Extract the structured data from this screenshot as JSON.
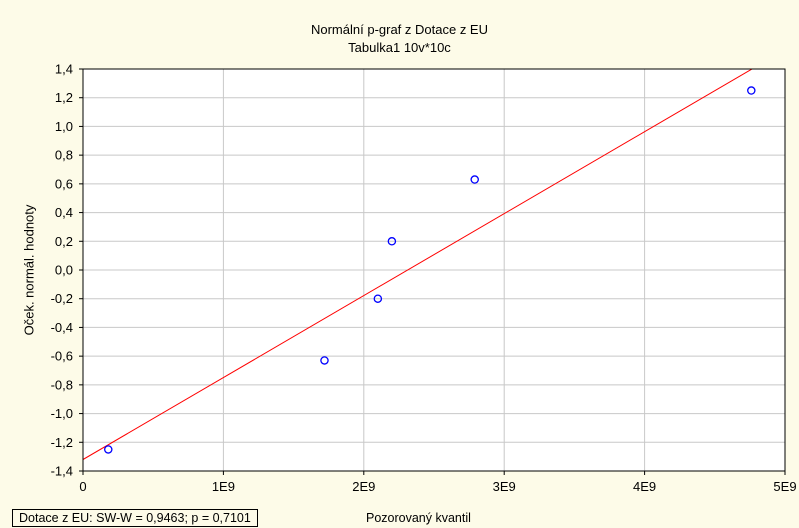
{
  "chart_data": {
    "type": "scatter",
    "title": "Normální p-graf z Dotace z EU",
    "subtitle": "Tabulka1 10v*10c",
    "xlabel": "Pozorovaný kvantil",
    "ylabel": "Oček. normál. hodnoty",
    "xlim": [
      0,
      5000000000
    ],
    "ylim": [
      -1.4,
      1.4
    ],
    "x_ticks": [
      0,
      1000000000,
      2000000000,
      3000000000,
      4000000000,
      5000000000
    ],
    "x_tick_labels": [
      "0",
      "1E9",
      "2E9",
      "3E9",
      "4E9",
      "5E9"
    ],
    "y_ticks": [
      -1.4,
      -1.2,
      -1.0,
      -0.8,
      -0.6,
      -0.4,
      -0.2,
      0.0,
      0.2,
      0.4,
      0.6,
      0.8,
      1.0,
      1.2,
      1.4
    ],
    "y_tick_labels": [
      "-1,4",
      "-1,2",
      "-1,0",
      "-0,8",
      "-0,6",
      "-0,4",
      "-0,2",
      "0,0",
      "0,2",
      "0,4",
      "0,6",
      "0,8",
      "1,0",
      "1,2",
      "1,4"
    ],
    "grid": true,
    "points": [
      {
        "x": 180000000,
        "y": -1.25
      },
      {
        "x": 1720000000,
        "y": -0.63
      },
      {
        "x": 2100000000,
        "y": -0.2
      },
      {
        "x": 2200000000,
        "y": 0.2
      },
      {
        "x": 2790000000,
        "y": 0.63
      },
      {
        "x": 4760000000,
        "y": 1.25
      }
    ],
    "fit_line": {
      "x": [
        0,
        4800000000
      ],
      "y": [
        -1.32,
        1.42
      ]
    },
    "point_color": "#0000ff",
    "line_color": "#ff0000",
    "stats_text": "Dotace z EU:  SW-W = 0,9463; p = 0,7101"
  }
}
